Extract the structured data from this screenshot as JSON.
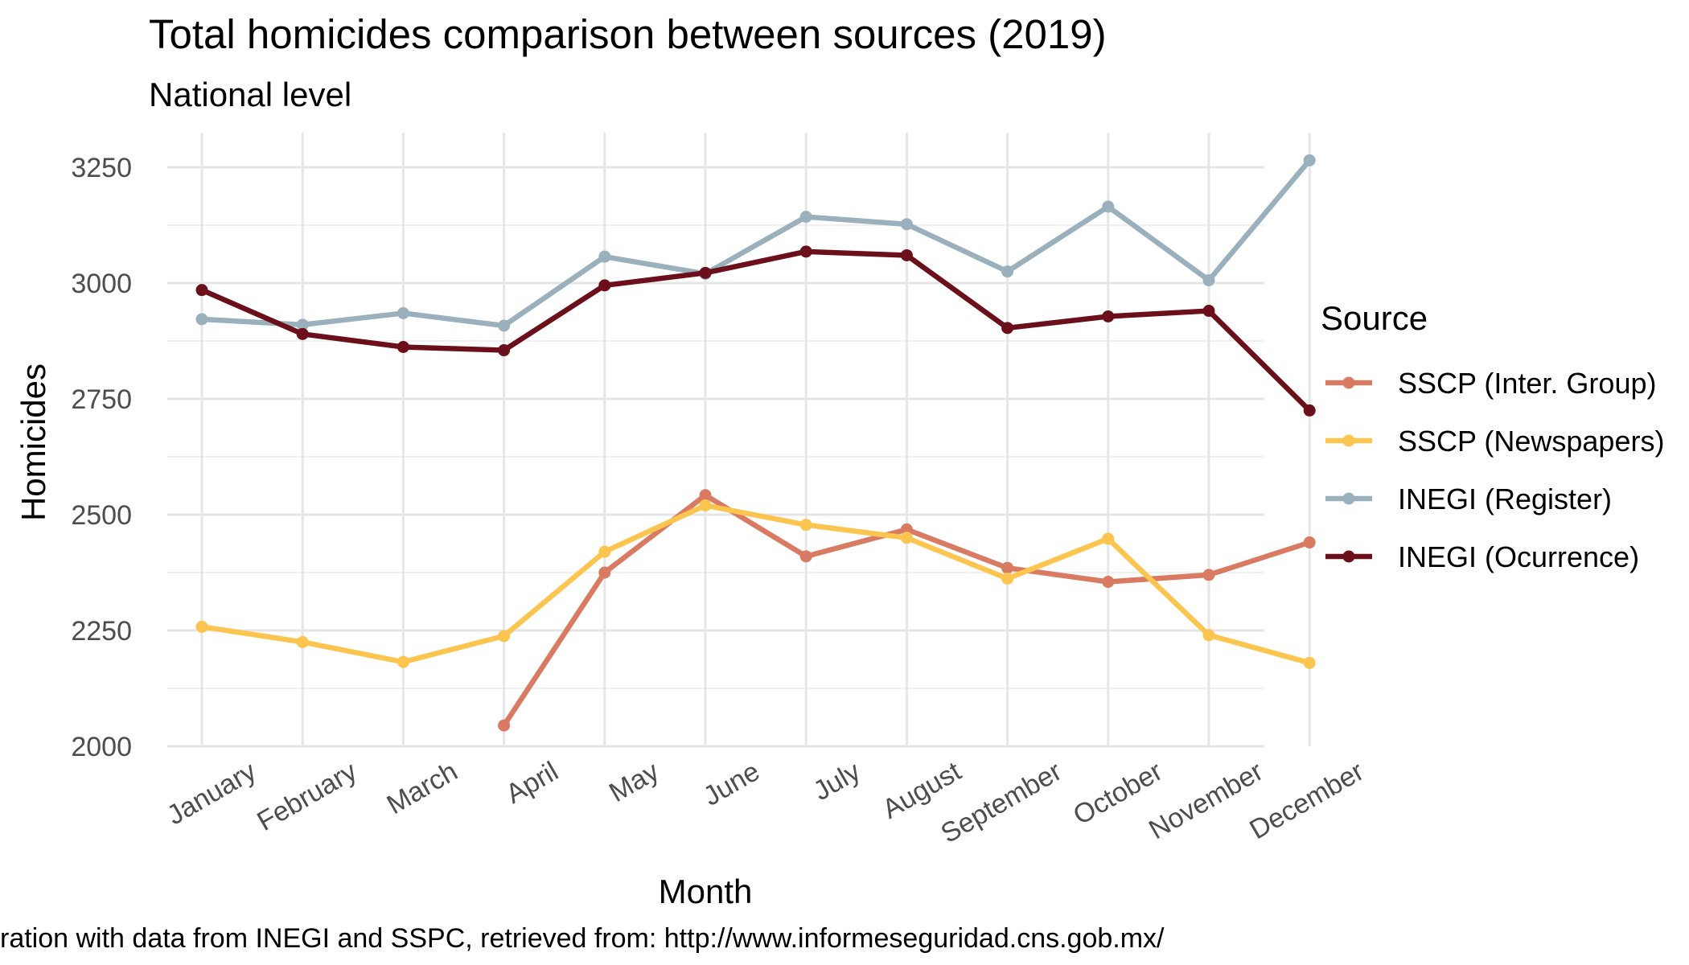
{
  "chart_data": {
    "type": "line",
    "title": "Total homicides comparison between sources (2019)",
    "subtitle": "National level",
    "xlabel": "Month",
    "ylabel": "Homicides",
    "caption": "ration with data from INEGI and SSPC, retrieved from: http://www.informeseguridad.cns.gob.mx/",
    "categories": [
      "January",
      "February",
      "March",
      "April",
      "May",
      "June",
      "July",
      "August",
      "September",
      "October",
      "November",
      "December"
    ],
    "ylim": [
      2000,
      3300
    ],
    "yticks": [
      2000,
      2250,
      2500,
      2750,
      3000,
      3250
    ],
    "grid": true,
    "legend": {
      "title": "Source",
      "position": "right"
    },
    "series": [
      {
        "name": "SSCP (Inter. Group)",
        "color": "#D97B63",
        "values": [
          null,
          null,
          null,
          2045,
          2375,
          2542,
          2410,
          2468,
          2385,
          2355,
          2370,
          2440
        ]
      },
      {
        "name": "SSCP (Newspapers)",
        "color": "#FCC54F",
        "values": [
          2258,
          2225,
          2182,
          2238,
          2420,
          2520,
          2478,
          2450,
          2362,
          2448,
          2240,
          2180
        ]
      },
      {
        "name": "INEGI (Register)",
        "color": "#9BB0BD",
        "values": [
          2922,
          2910,
          2935,
          2908,
          3057,
          3020,
          3143,
          3127,
          3025,
          3165,
          3006,
          3265
        ]
      },
      {
        "name": "INEGI (Ocurrence)",
        "color": "#6B0F1A",
        "values": [
          2985,
          2890,
          2862,
          2855,
          2995,
          3022,
          3068,
          3060,
          2903,
          2928,
          2940,
          2725
        ]
      }
    ]
  }
}
